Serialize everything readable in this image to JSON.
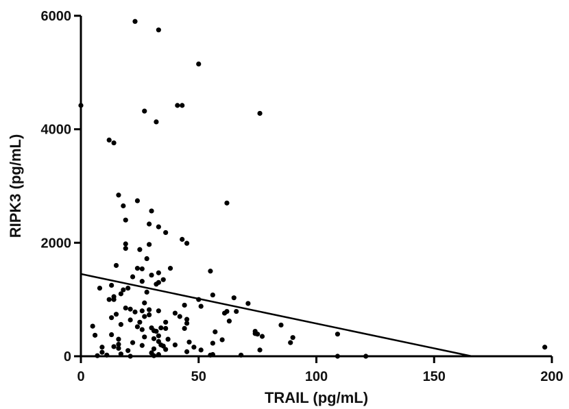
{
  "chart_data": {
    "type": "scatter",
    "xlabel": "TRAIL (pg/mL)",
    "ylabel": "RIPK3 (pg/mL)",
    "xlim": [
      0,
      200
    ],
    "ylim": [
      0,
      6000
    ],
    "xticks": [
      0,
      50,
      100,
      150,
      200
    ],
    "yticks": [
      0,
      2000,
      4000,
      6000
    ],
    "grid": false,
    "legend": "none",
    "fit_line": {
      "x": [
        0,
        166
      ],
      "y": [
        1450,
        0
      ]
    },
    "series": [
      {
        "points": [
          [
            23,
            5900
          ],
          [
            33,
            5750
          ],
          [
            50,
            5150
          ],
          [
            0,
            4420
          ],
          [
            41,
            4420
          ],
          [
            43,
            4420
          ],
          [
            27,
            4320
          ],
          [
            76,
            4280
          ],
          [
            32,
            4130
          ],
          [
            12,
            3810
          ],
          [
            14,
            3760
          ],
          [
            16,
            2840
          ],
          [
            24,
            2740
          ],
          [
            18,
            2650
          ],
          [
            30,
            2560
          ],
          [
            19,
            2400
          ],
          [
            62,
            2700
          ],
          [
            29,
            2330
          ],
          [
            33,
            2280
          ],
          [
            36,
            2180
          ],
          [
            43,
            2060
          ],
          [
            45,
            1990
          ],
          [
            19,
            1980
          ],
          [
            29,
            1970
          ],
          [
            19,
            1900
          ],
          [
            25,
            1880
          ],
          [
            28,
            1720
          ],
          [
            15,
            1600
          ],
          [
            24,
            1550
          ],
          [
            26,
            1540
          ],
          [
            38,
            1550
          ],
          [
            55,
            1500
          ],
          [
            33,
            1470
          ],
          [
            30,
            1430
          ],
          [
            22,
            1400
          ],
          [
            35,
            1350
          ],
          [
            26,
            1320
          ],
          [
            33,
            1300
          ],
          [
            32,
            1270
          ],
          [
            13,
            1250
          ],
          [
            8,
            1200
          ],
          [
            20,
            1200
          ],
          [
            18,
            1170
          ],
          [
            28,
            1130
          ],
          [
            17,
            1100
          ],
          [
            14,
            1050
          ],
          [
            56,
            1080
          ],
          [
            14,
            1000
          ],
          [
            65,
            1030
          ],
          [
            12,
            1000
          ],
          [
            50,
            1000
          ],
          [
            71,
            930
          ],
          [
            27,
            940
          ],
          [
            44,
            900
          ],
          [
            51,
            880
          ],
          [
            19,
            850
          ],
          [
            21,
            830
          ],
          [
            29,
            820
          ],
          [
            33,
            800
          ],
          [
            26,
            800
          ],
          [
            62,
            790
          ],
          [
            66,
            790
          ],
          [
            23,
            780
          ],
          [
            40,
            760
          ],
          [
            61,
            760
          ],
          [
            15,
            740
          ],
          [
            29,
            730
          ],
          [
            27,
            700
          ],
          [
            42,
            700
          ],
          [
            13,
            680
          ],
          [
            45,
            650
          ],
          [
            21,
            640
          ],
          [
            63,
            620
          ],
          [
            25,
            600
          ],
          [
            36,
            600
          ],
          [
            45,
            580
          ],
          [
            17,
            560
          ],
          [
            85,
            550
          ],
          [
            5,
            530
          ],
          [
            24,
            520
          ],
          [
            30,
            500
          ],
          [
            34,
            500
          ],
          [
            36,
            490
          ],
          [
            44,
            490
          ],
          [
            26,
            470
          ],
          [
            31,
            450
          ],
          [
            32,
            440
          ],
          [
            57,
            430
          ],
          [
            74,
            440
          ],
          [
            74,
            400
          ],
          [
            75,
            390
          ],
          [
            109,
            390
          ],
          [
            13,
            380
          ],
          [
            6,
            370
          ],
          [
            33,
            360
          ],
          [
            77,
            350
          ],
          [
            27,
            340
          ],
          [
            90,
            330
          ],
          [
            31,
            310
          ],
          [
            16,
            300
          ],
          [
            37,
            300
          ],
          [
            60,
            290
          ],
          [
            33,
            260
          ],
          [
            46,
            250
          ],
          [
            89,
            240
          ],
          [
            22,
            240
          ],
          [
            56,
            230
          ],
          [
            16,
            210
          ],
          [
            34,
            200
          ],
          [
            40,
            200
          ],
          [
            26,
            190
          ],
          [
            14,
            170
          ],
          [
            35,
            180
          ],
          [
            48,
            160
          ],
          [
            9,
            160
          ],
          [
            16,
            140
          ],
          [
            31,
            130
          ],
          [
            36,
            120
          ],
          [
            51,
            110
          ],
          [
            76,
            110
          ],
          [
            20,
            100
          ],
          [
            45,
            80
          ],
          [
            9,
            70
          ],
          [
            30,
            60
          ],
          [
            17,
            40
          ],
          [
            33,
            30
          ],
          [
            55,
            20
          ],
          [
            56,
            30
          ],
          [
            11,
            20
          ],
          [
            31,
            10
          ],
          [
            68,
            20
          ],
          [
            7,
            10
          ],
          [
            21,
            0
          ],
          [
            109,
            0
          ],
          [
            121,
            0
          ],
          [
            197,
            160
          ]
        ]
      }
    ]
  }
}
